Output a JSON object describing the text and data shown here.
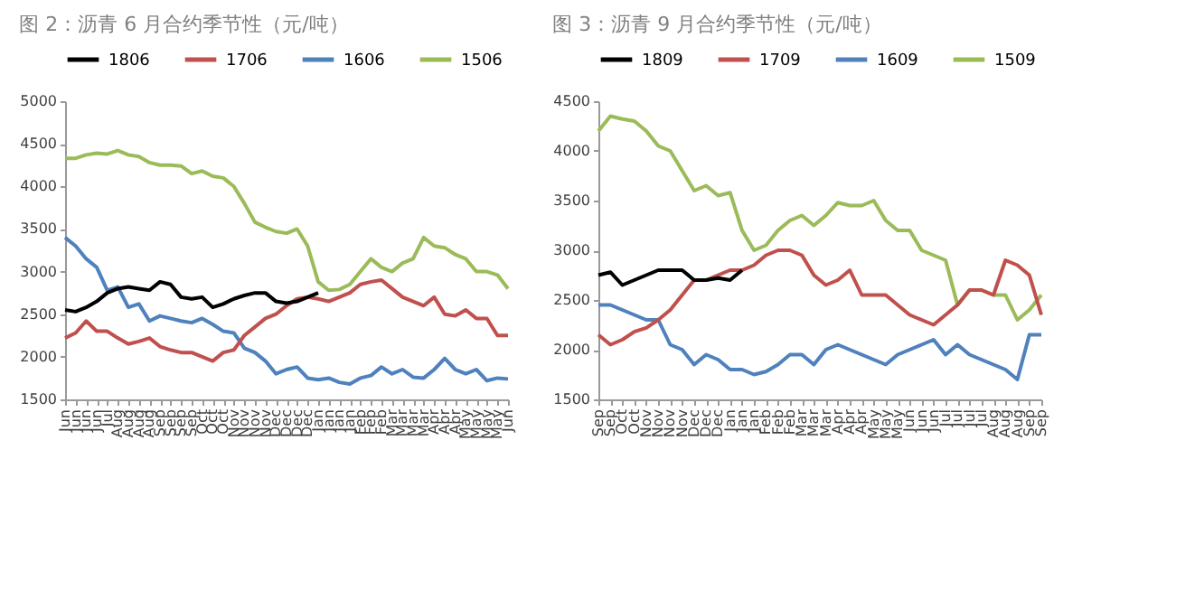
{
  "chart_data": [
    {
      "type": "line",
      "title": "图 2：沥青 6 月合约季节性（元/吨）",
      "legend": "top",
      "grid": false,
      "line_style": "solid",
      "marker": "none",
      "categories": [
        "Jun",
        "Jun",
        "Jun",
        "Jun",
        "Jul",
        "Aug",
        "Aug",
        "Aug",
        "Aug",
        "Sep",
        "Sep",
        "Sep",
        "Sep",
        "Oct",
        "Oct",
        "Oct",
        "Nov",
        "Nov",
        "Nov",
        "Nov",
        "Dec",
        "Dec",
        "Dec",
        "Dec",
        "Jan",
        "Jan",
        "Jan",
        "Jan",
        "Feb",
        "Feb",
        "Feb",
        "Mar",
        "Mar",
        "Mar",
        "Mar",
        "Apr",
        "Apr",
        "Apr",
        "May",
        "May",
        "May",
        "May",
        "Jun"
      ],
      "ylim": [
        1500,
        5000
      ],
      "yticks": [
        1500,
        2000,
        2500,
        3000,
        3500,
        4000,
        4500,
        5000
      ],
      "series": [
        {
          "name": "1806",
          "color": "#000000",
          "values": [
            2550,
            2530,
            2580,
            2650,
            2750,
            2800,
            2820,
            2800,
            2780,
            2880,
            2850,
            2700,
            2680,
            2700,
            2580,
            2620,
            2680,
            2720,
            2750,
            2750,
            2650,
            2630,
            2650,
            2700,
            2750,
            null,
            null,
            null,
            null,
            null,
            null,
            null,
            null,
            null,
            null,
            null,
            null,
            null,
            null,
            null,
            null,
            null,
            null
          ]
        },
        {
          "name": "1706",
          "color": "#c0504d",
          "values": [
            2220,
            2280,
            2420,
            2300,
            2300,
            2220,
            2150,
            2180,
            2220,
            2120,
            2080,
            2050,
            2050,
            2000,
            1950,
            2050,
            2080,
            2250,
            2350,
            2450,
            2500,
            2600,
            2680,
            2700,
            2680,
            2650,
            2700,
            2750,
            2850,
            2880,
            2900,
            2800,
            2700,
            2650,
            2600,
            2700,
            2500,
            2480,
            2550,
            2450,
            2450,
            2250,
            2250
          ]
        },
        {
          "name": "1606",
          "color": "#4f81bd",
          "values": [
            3400,
            3300,
            3150,
            3050,
            2780,
            2820,
            2580,
            2620,
            2420,
            2480,
            2450,
            2420,
            2400,
            2450,
            2380,
            2300,
            2280,
            2100,
            2050,
            1950,
            1800,
            1850,
            1880,
            1750,
            1730,
            1750,
            1700,
            1680,
            1750,
            1780,
            1880,
            1800,
            1850,
            1760,
            1750,
            1850,
            1980,
            1850,
            1800,
            1850,
            1720,
            1750,
            1740
          ]
        },
        {
          "name": "1506",
          "color": "#9bbb59",
          "values": [
            4330,
            4330,
            4370,
            4390,
            4380,
            4420,
            4370,
            4350,
            4280,
            4250,
            4250,
            4240,
            4150,
            4180,
            4120,
            4100,
            4000,
            3800,
            3580,
            3520,
            3470,
            3450,
            3500,
            3300,
            2880,
            2780,
            2790,
            2850,
            3000,
            3150,
            3050,
            3000,
            3100,
            3150,
            3400,
            3300,
            3280,
            3200,
            3150,
            3000,
            3000,
            2960,
            2800
          ]
        }
      ]
    },
    {
      "type": "line",
      "title": "图 3：沥青 9 月合约季节性（元/吨）",
      "legend": "top",
      "grid": false,
      "line_style": "solid",
      "marker": "none",
      "categories": [
        "Sep",
        "Sep",
        "Oct",
        "Oct",
        "Nov",
        "Nov",
        "Nov",
        "Nov",
        "Dec",
        "Dec",
        "Dec",
        "Jan",
        "Jan",
        "Jan",
        "Feb",
        "Feb",
        "Feb",
        "Mar",
        "Mar",
        "Mar",
        "Apr",
        "Apr",
        "Apr",
        "May",
        "May",
        "May",
        "Jun",
        "Jun",
        "Jun",
        "Jul",
        "Jul",
        "Jul",
        "Jul",
        "Aug",
        "Aug",
        "Aug",
        "Sep",
        "Sep"
      ],
      "ylim": [
        1500,
        4500
      ],
      "yticks": [
        1500,
        2000,
        2500,
        3000,
        3500,
        4000,
        4500
      ],
      "series": [
        {
          "name": "1809",
          "color": "#000000",
          "values": [
            2750,
            2780,
            2650,
            2700,
            2750,
            2800,
            2800,
            2800,
            2700,
            2700,
            2720,
            2700,
            2800,
            null,
            null,
            null,
            null,
            null,
            null,
            null,
            null,
            null,
            null,
            null,
            null,
            null,
            null,
            null,
            null,
            null,
            null,
            null,
            null,
            null,
            null,
            null,
            null,
            null
          ]
        },
        {
          "name": "1709",
          "color": "#c0504d",
          "values": [
            2150,
            2050,
            2100,
            2180,
            2220,
            2300,
            2400,
            2550,
            2700,
            2700,
            2750,
            2800,
            2800,
            2850,
            2950,
            3000,
            3000,
            2950,
            2750,
            2650,
            2700,
            2800,
            2550,
            2550,
            2550,
            2450,
            2350,
            2300,
            2250,
            2350,
            2450,
            2600,
            2600,
            2550,
            2900,
            2850,
            2750,
            2350
          ]
        },
        {
          "name": "1609",
          "color": "#4f81bd",
          "values": [
            2450,
            2450,
            2400,
            2350,
            2300,
            2300,
            2050,
            2000,
            1850,
            1950,
            1900,
            1800,
            1800,
            1750,
            1780,
            1850,
            1950,
            1950,
            1850,
            2000,
            2050,
            2000,
            1950,
            1900,
            1850,
            1950,
            2000,
            2050,
            2100,
            1950,
            2050,
            1950,
            1900,
            1850,
            1800,
            1700,
            2150,
            2150
          ]
        },
        {
          "name": "1509",
          "color": "#9bbb59",
          "values": [
            4200,
            4350,
            4320,
            4300,
            4200,
            4050,
            4000,
            3800,
            3600,
            3650,
            3550,
            3580,
            3200,
            3000,
            3050,
            3200,
            3300,
            3350,
            3250,
            3350,
            3480,
            3450,
            3450,
            3500,
            3300,
            3200,
            3200,
            3000,
            2950,
            2900,
            2450,
            2600,
            2600,
            2550,
            2550,
            2300,
            2400,
            2550
          ]
        }
      ]
    }
  ]
}
